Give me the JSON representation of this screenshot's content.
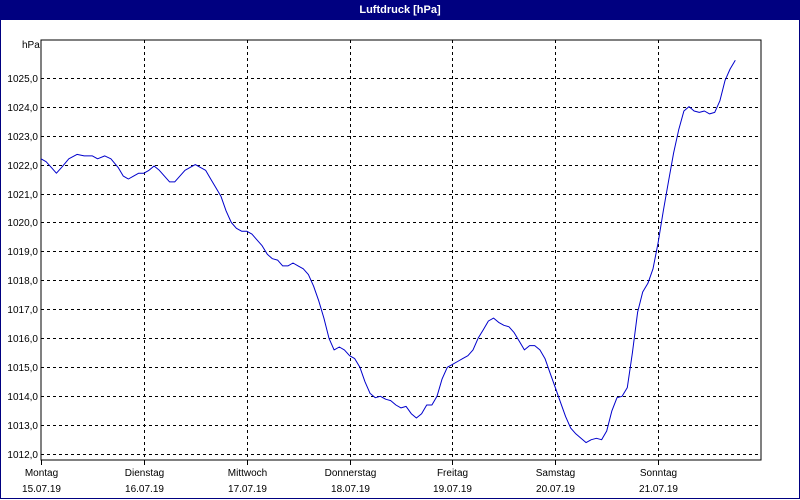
{
  "chart_data": {
    "type": "line",
    "title": "Luftdruck [hPa]",
    "unit_label": "hPa",
    "ylim": [
      1011.8,
      1026.3
    ],
    "y_ticks": [
      "1012,0",
      "1013,0",
      "1014,0",
      "1015,0",
      "1016,0",
      "1017,0",
      "1018,0",
      "1019,0",
      "1020,0",
      "1021,0",
      "1022,0",
      "1023,0",
      "1024,0",
      "1025,0"
    ],
    "y_tick_values": [
      1012,
      1013,
      1014,
      1015,
      1016,
      1017,
      1018,
      1019,
      1020,
      1021,
      1022,
      1023,
      1024,
      1025
    ],
    "grid": true,
    "x_categories": [
      {
        "day": "Montag",
        "date": "15.07.19"
      },
      {
        "day": "Dienstag",
        "date": "16.07.19"
      },
      {
        "day": "Mittwoch",
        "date": "17.07.19"
      },
      {
        "day": "Donnerstag",
        "date": "18.07.19"
      },
      {
        "day": "Freitag",
        "date": "19.07.19"
      },
      {
        "day": "Samstag",
        "date": "20.07.19"
      },
      {
        "day": "Sonntag",
        "date": "21.07.19"
      }
    ],
    "x_range_days": [
      0,
      7
    ],
    "series": [
      {
        "color": "#0000cc",
        "points": [
          [
            0.0,
            1022.2
          ],
          [
            0.05,
            1022.1
          ],
          [
            0.1,
            1021.9
          ],
          [
            0.15,
            1021.7
          ],
          [
            0.2,
            1021.9
          ],
          [
            0.27,
            1022.2
          ],
          [
            0.35,
            1022.35
          ],
          [
            0.42,
            1022.3
          ],
          [
            0.5,
            1022.3
          ],
          [
            0.55,
            1022.2
          ],
          [
            0.62,
            1022.3
          ],
          [
            0.68,
            1022.2
          ],
          [
            0.75,
            1021.9
          ],
          [
            0.8,
            1021.6
          ],
          [
            0.85,
            1021.5
          ],
          [
            0.9,
            1021.6
          ],
          [
            0.95,
            1021.7
          ],
          [
            1.0,
            1021.7
          ],
          [
            1.05,
            1021.8
          ],
          [
            1.1,
            1021.95
          ],
          [
            1.15,
            1021.8
          ],
          [
            1.2,
            1021.6
          ],
          [
            1.25,
            1021.4
          ],
          [
            1.3,
            1021.4
          ],
          [
            1.35,
            1021.6
          ],
          [
            1.4,
            1021.8
          ],
          [
            1.45,
            1021.9
          ],
          [
            1.5,
            1022.0
          ],
          [
            1.55,
            1021.9
          ],
          [
            1.6,
            1021.8
          ],
          [
            1.65,
            1021.5
          ],
          [
            1.7,
            1021.2
          ],
          [
            1.75,
            1020.9
          ],
          [
            1.8,
            1020.4
          ],
          [
            1.85,
            1020.0
          ],
          [
            1.9,
            1019.8
          ],
          [
            1.95,
            1019.7
          ],
          [
            2.0,
            1019.7
          ],
          [
            2.05,
            1019.6
          ],
          [
            2.1,
            1019.4
          ],
          [
            2.15,
            1019.2
          ],
          [
            2.2,
            1018.9
          ],
          [
            2.25,
            1018.75
          ],
          [
            2.3,
            1018.7
          ],
          [
            2.35,
            1018.5
          ],
          [
            2.4,
            1018.5
          ],
          [
            2.45,
            1018.6
          ],
          [
            2.5,
            1018.5
          ],
          [
            2.55,
            1018.4
          ],
          [
            2.6,
            1018.2
          ],
          [
            2.65,
            1017.8
          ],
          [
            2.7,
            1017.3
          ],
          [
            2.75,
            1016.7
          ],
          [
            2.8,
            1016.0
          ],
          [
            2.85,
            1015.6
          ],
          [
            2.9,
            1015.7
          ],
          [
            2.95,
            1015.6
          ],
          [
            3.0,
            1015.4
          ],
          [
            3.05,
            1015.3
          ],
          [
            3.1,
            1015.0
          ],
          [
            3.15,
            1014.5
          ],
          [
            3.2,
            1014.1
          ],
          [
            3.25,
            1013.95
          ],
          [
            3.3,
            1014.0
          ],
          [
            3.35,
            1013.9
          ],
          [
            3.4,
            1013.85
          ],
          [
            3.45,
            1013.7
          ],
          [
            3.5,
            1013.6
          ],
          [
            3.55,
            1013.65
          ],
          [
            3.6,
            1013.4
          ],
          [
            3.65,
            1013.25
          ],
          [
            3.7,
            1013.4
          ],
          [
            3.75,
            1013.7
          ],
          [
            3.8,
            1013.7
          ],
          [
            3.85,
            1014.0
          ],
          [
            3.9,
            1014.6
          ],
          [
            3.95,
            1015.0
          ],
          [
            4.0,
            1015.1
          ],
          [
            4.05,
            1015.2
          ],
          [
            4.1,
            1015.3
          ],
          [
            4.15,
            1015.4
          ],
          [
            4.2,
            1015.6
          ],
          [
            4.25,
            1016.0
          ],
          [
            4.3,
            1016.3
          ],
          [
            4.35,
            1016.6
          ],
          [
            4.4,
            1016.7
          ],
          [
            4.45,
            1016.55
          ],
          [
            4.5,
            1016.45
          ],
          [
            4.55,
            1016.4
          ],
          [
            4.6,
            1016.2
          ],
          [
            4.65,
            1015.9
          ],
          [
            4.7,
            1015.6
          ],
          [
            4.75,
            1015.75
          ],
          [
            4.8,
            1015.75
          ],
          [
            4.85,
            1015.6
          ],
          [
            4.9,
            1015.3
          ],
          [
            4.95,
            1014.8
          ],
          [
            5.0,
            1014.3
          ],
          [
            5.05,
            1013.8
          ],
          [
            5.1,
            1013.3
          ],
          [
            5.15,
            1012.9
          ],
          [
            5.2,
            1012.7
          ],
          [
            5.25,
            1012.55
          ],
          [
            5.3,
            1012.4
          ],
          [
            5.35,
            1012.5
          ],
          [
            5.4,
            1012.55
          ],
          [
            5.45,
            1012.5
          ],
          [
            5.5,
            1012.8
          ],
          [
            5.55,
            1013.5
          ],
          [
            5.6,
            1013.95
          ],
          [
            5.65,
            1014.0
          ],
          [
            5.7,
            1014.3
          ],
          [
            5.75,
            1015.5
          ],
          [
            5.8,
            1016.9
          ],
          [
            5.85,
            1017.6
          ],
          [
            5.9,
            1017.9
          ],
          [
            5.95,
            1018.4
          ],
          [
            6.0,
            1019.3
          ],
          [
            6.05,
            1020.4
          ],
          [
            6.1,
            1021.4
          ],
          [
            6.15,
            1022.4
          ],
          [
            6.2,
            1023.2
          ],
          [
            6.25,
            1023.85
          ],
          [
            6.3,
            1024.0
          ],
          [
            6.35,
            1023.85
          ],
          [
            6.4,
            1023.8
          ],
          [
            6.45,
            1023.85
          ],
          [
            6.5,
            1023.75
          ],
          [
            6.55,
            1023.8
          ],
          [
            6.6,
            1024.2
          ],
          [
            6.65,
            1024.9
          ],
          [
            6.7,
            1025.3
          ],
          [
            6.75,
            1025.6
          ]
        ]
      }
    ]
  }
}
